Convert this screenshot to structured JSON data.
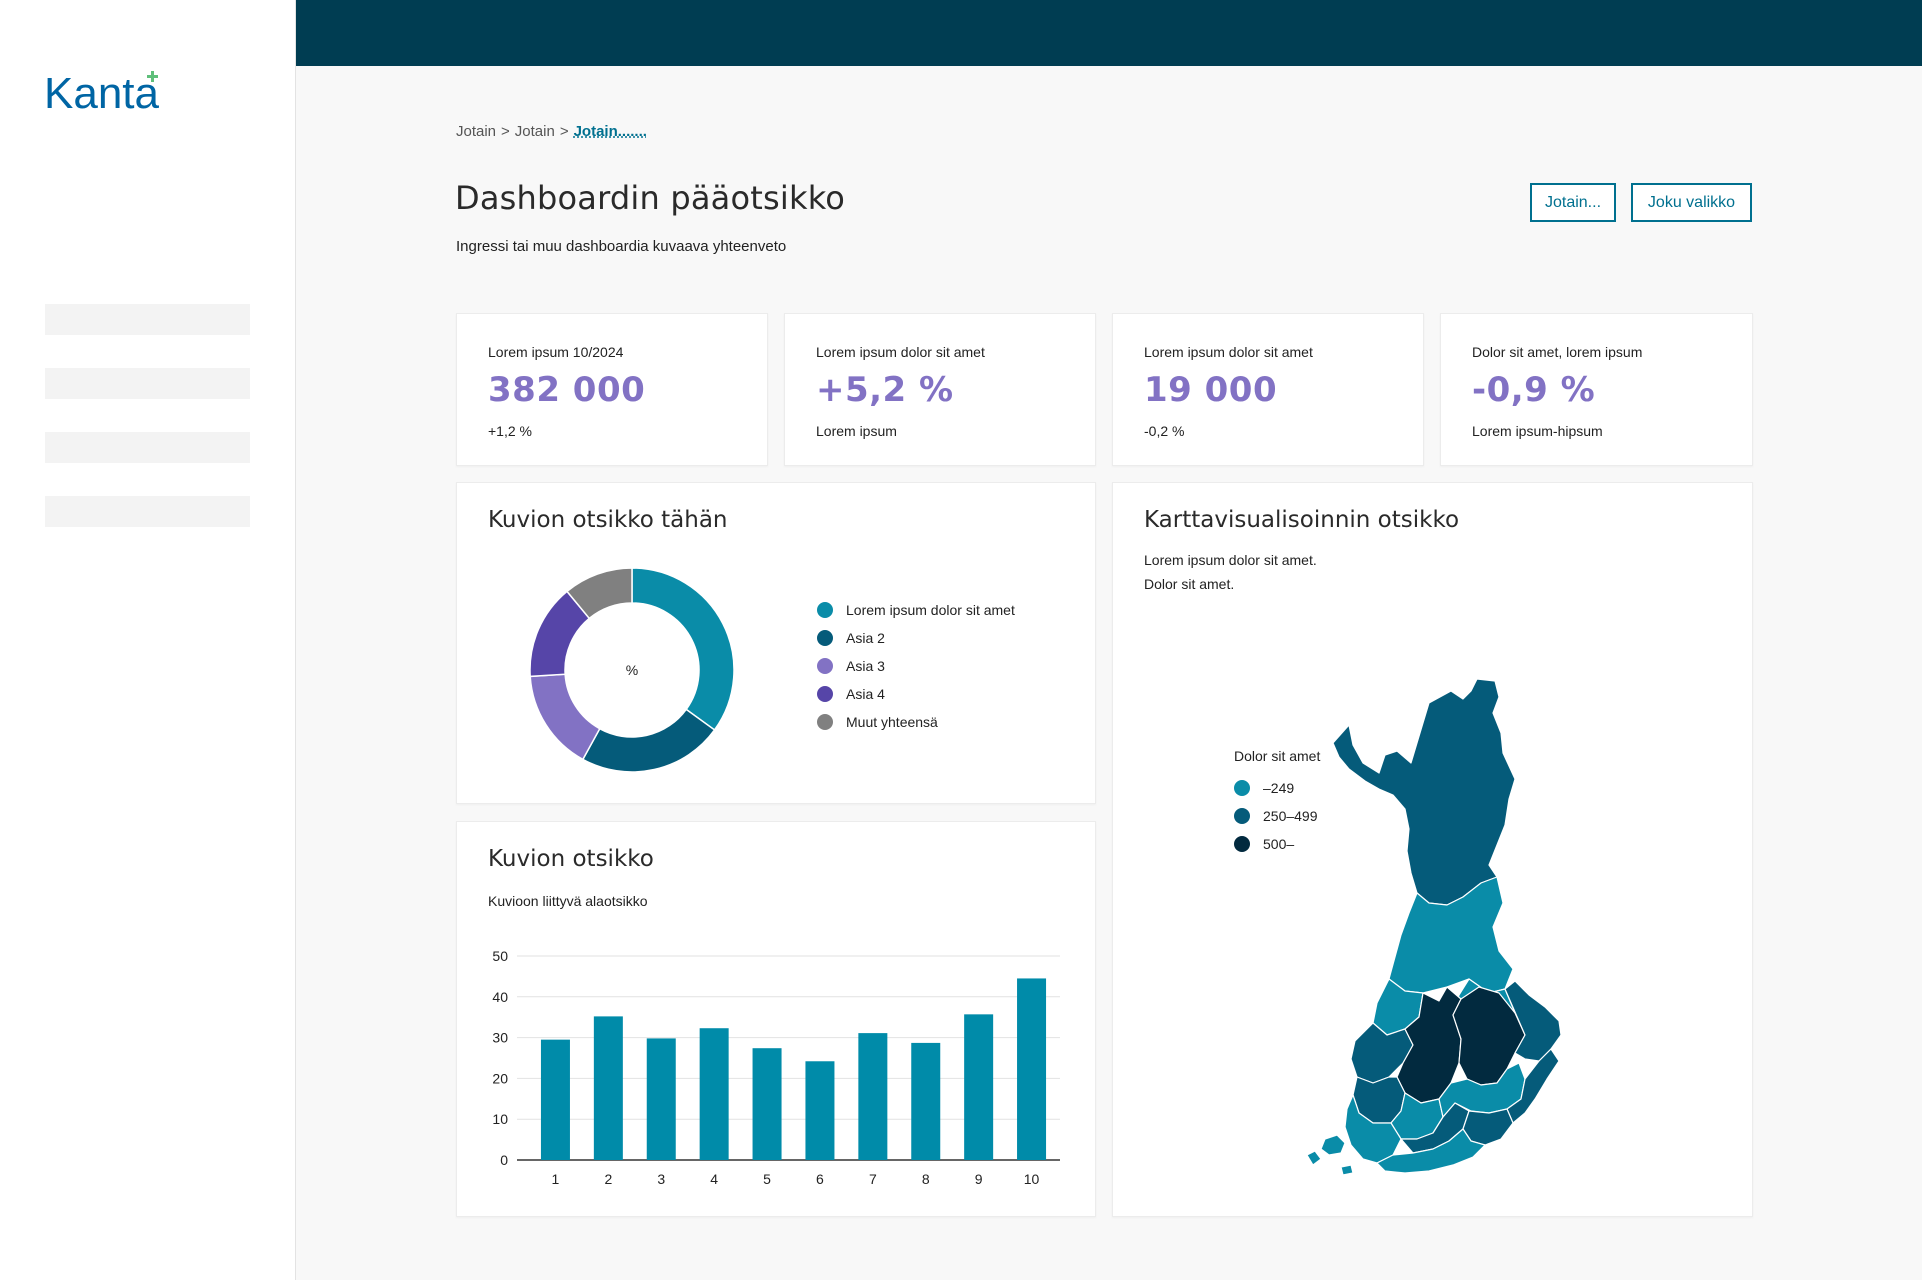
{
  "logo": {
    "text": "Kanta",
    "color": "#0065a4",
    "accent": "#5fbf7a"
  },
  "breadcrumb": {
    "items": [
      "Jotain",
      "Jotain"
    ],
    "separator": ">",
    "current": "Jotain......."
  },
  "header": {
    "title": "Dashboardin pääotsikko",
    "intro": "Ingressi tai muu dashboardia kuvaava yhteenveto",
    "buttons": [
      "Jotain...",
      "Joku valikko"
    ]
  },
  "kpis": [
    {
      "label": "Lorem ipsum 10/2024",
      "value": "382 000",
      "sub": "+1,2 %"
    },
    {
      "label": "Lorem ipsum dolor sit amet",
      "value": "+5,2 %",
      "sub": "Lorem ipsum"
    },
    {
      "label": "Lorem ipsum dolor sit amet",
      "value": "19 000",
      "sub": "-0,2 %"
    },
    {
      "label": "Dolor sit amet, lorem ipsum",
      "value": "-0,9 %",
      "sub": "Lorem ipsum-hipsum"
    }
  ],
  "donut_card": {
    "title": "Kuvion otsikko tähän"
  },
  "bar_card": {
    "title": "Kuvion otsikko",
    "subtitle": "Kuvioon liittyvä alaotsikko"
  },
  "map_card": {
    "title": "Karttavisualisoinnin otsikko",
    "desc1": "Lorem ipsum dolor sit amet.",
    "desc2": "Dolor sit amet.",
    "legend_title": "Dolor sit amet",
    "legend": [
      {
        "label": "–249",
        "color": "#0a8ca8"
      },
      {
        "label": "250–499",
        "color": "#055b7a"
      },
      {
        "label": "500–",
        "color": "#022a3f"
      }
    ]
  },
  "colors": {
    "topbar": "#003d52",
    "accent": "#00708f",
    "kpi": "#8272c4",
    "bar": "#008ba9"
  },
  "chart_data": [
    {
      "type": "pie",
      "center_label": "%",
      "categories": [
        "Lorem ipsum dolor sit amet",
        "Asia 2",
        "Asia 3",
        "Asia 4",
        "Muut yhteensä"
      ],
      "values": [
        35,
        23,
        16,
        15,
        11
      ],
      "colors": [
        "#0a8ca8",
        "#055b7a",
        "#8272c4",
        "#5645a8",
        "#808080"
      ]
    },
    {
      "type": "bar",
      "categories": [
        "1",
        "2",
        "3",
        "4",
        "5",
        "6",
        "7",
        "8",
        "9",
        "10"
      ],
      "values": [
        29.5,
        35.2,
        29.8,
        32.3,
        27.4,
        24.2,
        31.1,
        28.7,
        35.7,
        44.5
      ],
      "yticks": [
        "0",
        "10",
        "20",
        "30",
        "40",
        "50"
      ],
      "ylim": [
        0,
        50
      ],
      "grid": true
    }
  ]
}
